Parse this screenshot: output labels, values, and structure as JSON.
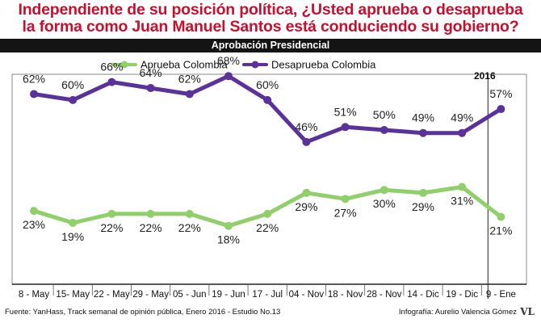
{
  "title": {
    "line1": "Independiente de su posición política, ¿Usted aprueba o desaprueba",
    "line2": "la forma como Juan Manuel Santos está conduciendo su gobierno?"
  },
  "subtitle": "Aprobación Presidencial",
  "year_marker": "2016",
  "source": "Fuente: YanHass, Track semanal de opinión pública, Enero 2016 - Estudio No.13",
  "credit": "Infografía: Aurelio Valencia Gómez",
  "logo_text": "VL",
  "chart_data": {
    "type": "line",
    "categories": [
      "8 - May",
      "15- May",
      "22 - May",
      "29 - May",
      "05 - Jun",
      "19 - Jun",
      "17 - Jul",
      "04 - Nov",
      "18 - Nov",
      "28 - Nov",
      "14 - Dic",
      "19 - Dic",
      "9 - Ene"
    ],
    "series": [
      {
        "name": "Aprueba Colombia",
        "color": "#8fd06a",
        "values": [
          23,
          19,
          22,
          22,
          22,
          18,
          22,
          29,
          27,
          30,
          29,
          31,
          21
        ],
        "labels": [
          "23%",
          "19%",
          "22%",
          "22%",
          "22%",
          "18%",
          "22%",
          "29%",
          "27%",
          "30%",
          "29%",
          "31%",
          "21%"
        ]
      },
      {
        "name": "Desaprueba Colombia",
        "color": "#5a329a",
        "values": [
          62,
          60,
          66,
          64,
          62,
          68,
          60,
          46,
          51,
          50,
          49,
          49,
          57
        ],
        "labels": [
          "62%",
          "60%",
          "66%",
          "64%",
          "62%",
          "68%",
          "60%",
          "46%",
          "51%",
          "50%",
          "49%",
          "49%",
          "57%"
        ]
      }
    ],
    "legend_position": "top",
    "grid": false
  }
}
